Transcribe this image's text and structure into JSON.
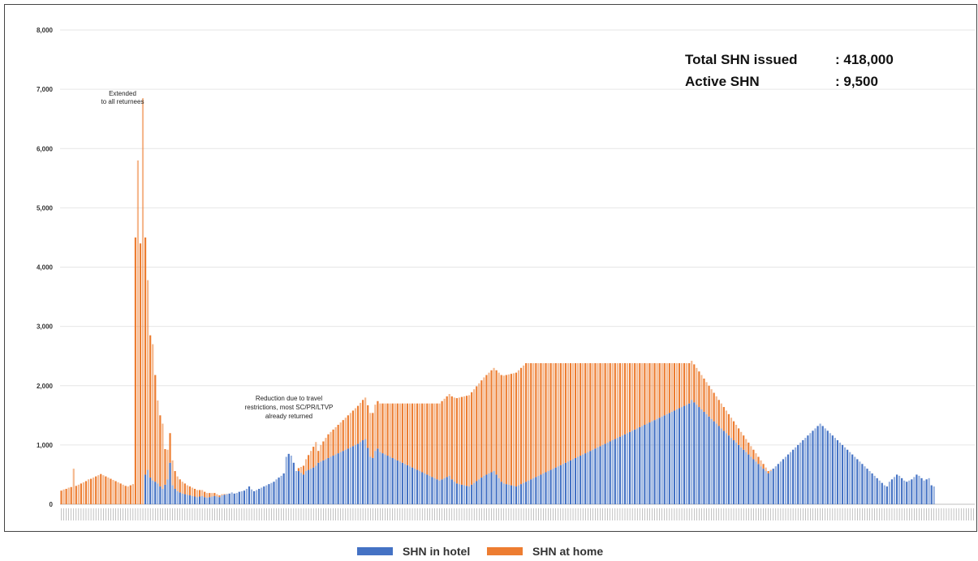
{
  "chart_data": {
    "type": "bar",
    "stacked": true,
    "y_axis": {
      "min": 0,
      "max": 8000,
      "step": 1000,
      "tick_labels": [
        "0",
        "1,000",
        "2,000",
        "3,000",
        "4,000",
        "5,000",
        "6,000",
        "7,000",
        "8,000"
      ]
    },
    "grid": true,
    "legend_position": "bottom",
    "series": [
      {
        "name": "SHN in hotel",
        "color": "#4472C4"
      },
      {
        "name": "SHN at home",
        "color": "#ED7D31"
      }
    ],
    "summary": [
      {
        "label": "Total SHN issued",
        "value": ": 418,000"
      },
      {
        "label": "Active SHN",
        "value": ": 9,500"
      }
    ],
    "annotations": [
      {
        "lines": [
          "Extended",
          "to all returnees"
        ]
      },
      {
        "lines": [
          "Reduction due to travel",
          "restrictions, most SC/PR/LTVP",
          "already returned"
        ]
      }
    ],
    "hotel_values": [
      0,
      0,
      0,
      0,
      0,
      0,
      0,
      0,
      0,
      0,
      0,
      0,
      0,
      0,
      0,
      0,
      0,
      0,
      0,
      0,
      0,
      0,
      0,
      0,
      0,
      0,
      0,
      0,
      0,
      0,
      0,
      0,
      0,
      0,
      500,
      580,
      450,
      400,
      380,
      350,
      300,
      260,
      330,
      420,
      700,
      320,
      260,
      220,
      200,
      180,
      170,
      160,
      150,
      140,
      130,
      120,
      130,
      140,
      120,
      110,
      120,
      130,
      140,
      130,
      120,
      150,
      160,
      170,
      180,
      200,
      180,
      190,
      210,
      220,
      230,
      260,
      300,
      250,
      220,
      240,
      260,
      280,
      300,
      320,
      340,
      360,
      380,
      420,
      450,
      480,
      520,
      800,
      850,
      820,
      700,
      560,
      560,
      530,
      500,
      560,
      580,
      600,
      620,
      650,
      700,
      720,
      740,
      760,
      780,
      800,
      820,
      840,
      860,
      880,
      900,
      920,
      940,
      960,
      980,
      1000,
      1020,
      1050,
      1080,
      1100,
      950,
      800,
      780,
      900,
      940,
      880,
      860,
      840,
      820,
      800,
      780,
      760,
      740,
      720,
      700,
      680,
      660,
      640,
      620,
      600,
      580,
      560,
      540,
      520,
      500,
      480,
      460,
      440,
      420,
      400,
      420,
      440,
      460,
      480,
      420,
      380,
      350,
      340,
      330,
      320,
      310,
      300,
      330,
      360,
      390,
      420,
      450,
      480,
      500,
      520,
      540,
      560,
      500,
      440,
      380,
      350,
      340,
      330,
      320,
      310,
      300,
      320,
      340,
      360,
      380,
      400,
      420,
      440,
      460,
      480,
      500,
      520,
      540,
      560,
      580,
      600,
      620,
      640,
      660,
      680,
      700,
      720,
      740,
      760,
      780,
      800,
      820,
      840,
      860,
      880,
      900,
      920,
      940,
      960,
      980,
      1000,
      1020,
      1040,
      1060,
      1080,
      1100,
      1120,
      1140,
      1160,
      1180,
      1200,
      1220,
      1240,
      1260,
      1280,
      1300,
      1320,
      1340,
      1360,
      1380,
      1400,
      1420,
      1440,
      1460,
      1480,
      1500,
      1520,
      1540,
      1560,
      1580,
      1600,
      1620,
      1640,
      1660,
      1680,
      1700,
      1760,
      1720,
      1680,
      1640,
      1600,
      1560,
      1520,
      1480,
      1440,
      1400,
      1360,
      1320,
      1280,
      1240,
      1200,
      1160,
      1120,
      1080,
      1040,
      1000,
      960,
      920,
      880,
      840,
      800,
      760,
      720,
      680,
      640,
      600,
      560,
      520,
      560,
      600,
      640,
      680,
      720,
      760,
      800,
      840,
      880,
      920,
      960,
      1000,
      1040,
      1080,
      1120,
      1160,
      1200,
      1240,
      1280,
      1320,
      1360,
      1320,
      1280,
      1240,
      1200,
      1160,
      1120,
      1080,
      1040,
      1000,
      960,
      920,
      880,
      840,
      800,
      760,
      720,
      680,
      640,
      600,
      560,
      520,
      480,
      440,
      400,
      360,
      320,
      300,
      380,
      420,
      460,
      500,
      480,
      440,
      400,
      380,
      400,
      420,
      460,
      500,
      480,
      440,
      400,
      420,
      440,
      320,
      300
    ],
    "home_values": [
      230,
      250,
      260,
      280,
      290,
      600,
      310,
      330,
      350,
      370,
      390,
      420,
      430,
      450,
      470,
      490,
      510,
      490,
      470,
      450,
      430,
      410,
      390,
      370,
      350,
      330,
      310,
      300,
      320,
      340,
      4500,
      5800,
      4400,
      6850,
      4000,
      3200,
      2400,
      2300,
      1800,
      1400,
      1200,
      1100,
      600,
      500,
      500,
      420,
      300,
      250,
      220,
      200,
      180,
      160,
      150,
      140,
      130,
      120,
      110,
      100,
      90,
      80,
      70,
      60,
      50,
      40,
      30,
      20,
      10,
      5,
      0,
      0,
      0,
      0,
      0,
      0,
      0,
      0,
      0,
      0,
      0,
      0,
      0,
      0,
      0,
      0,
      0,
      0,
      0,
      0,
      0,
      0,
      0,
      0,
      0,
      0,
      0,
      0,
      50,
      100,
      150,
      200,
      250,
      300,
      350,
      400,
      200,
      280,
      320,
      360,
      400,
      420,
      440,
      460,
      480,
      500,
      520,
      540,
      560,
      580,
      600,
      620,
      640,
      660,
      680,
      700,
      720,
      740,
      760,
      780,
      800,
      820,
      840,
      860,
      880,
      900,
      920,
      940,
      960,
      980,
      1000,
      1020,
      1040,
      1060,
      1080,
      1100,
      1120,
      1140,
      1160,
      1180,
      1200,
      1220,
      1240,
      1260,
      1280,
      1300,
      1320,
      1340,
      1360,
      1380,
      1400,
      1420,
      1440,
      1460,
      1480,
      1500,
      1520,
      1540,
      1560,
      1580,
      1600,
      1620,
      1640,
      1660,
      1680,
      1700,
      1720,
      1740,
      1760,
      1780,
      1800,
      1820,
      1840,
      1860,
      1880,
      1900,
      1920,
      1940,
      1960,
      1980,
      2000,
      1980,
      1960,
      1940,
      1920,
      1900,
      1880,
      1860,
      1840,
      1820,
      1800,
      1780,
      1760,
      1740,
      1720,
      1700,
      1680,
      1660,
      1640,
      1620,
      1600,
      1580,
      1560,
      1540,
      1520,
      1500,
      1480,
      1460,
      1440,
      1420,
      1400,
      1380,
      1360,
      1340,
      1320,
      1300,
      1280,
      1260,
      1240,
      1220,
      1200,
      1180,
      1160,
      1140,
      1120,
      1100,
      1080,
      1060,
      1040,
      1020,
      1000,
      980,
      960,
      940,
      920,
      900,
      880,
      860,
      840,
      820,
      800,
      780,
      760,
      740,
      720,
      700,
      680,
      660,
      640,
      620,
      600,
      580,
      560,
      540,
      520,
      500,
      480,
      460,
      440,
      420,
      400,
      380,
      360,
      340,
      320,
      300,
      280,
      260,
      240,
      220,
      200,
      180,
      160,
      140,
      120,
      100,
      80,
      60,
      40,
      20,
      0,
      0,
      0,
      0,
      0,
      0,
      0,
      0,
      0,
      0,
      0,
      0,
      0,
      0,
      0,
      0,
      0,
      0,
      0,
      0,
      0,
      0,
      0,
      0,
      0,
      0,
      0,
      0,
      0,
      0,
      0,
      0,
      0,
      0,
      0,
      0,
      0,
      0,
      0,
      0,
      0,
      0,
      0,
      0,
      0,
      0,
      0,
      0,
      0,
      0,
      0,
      0,
      0,
      0,
      0,
      0,
      0,
      0,
      0,
      0,
      0,
      0,
      0,
      0,
      0,
      0,
      0,
      0,
      0,
      0,
      0,
      0,
      0,
      0,
      0,
      0,
      0,
      0,
      0,
      0,
      0,
      0
    ]
  }
}
